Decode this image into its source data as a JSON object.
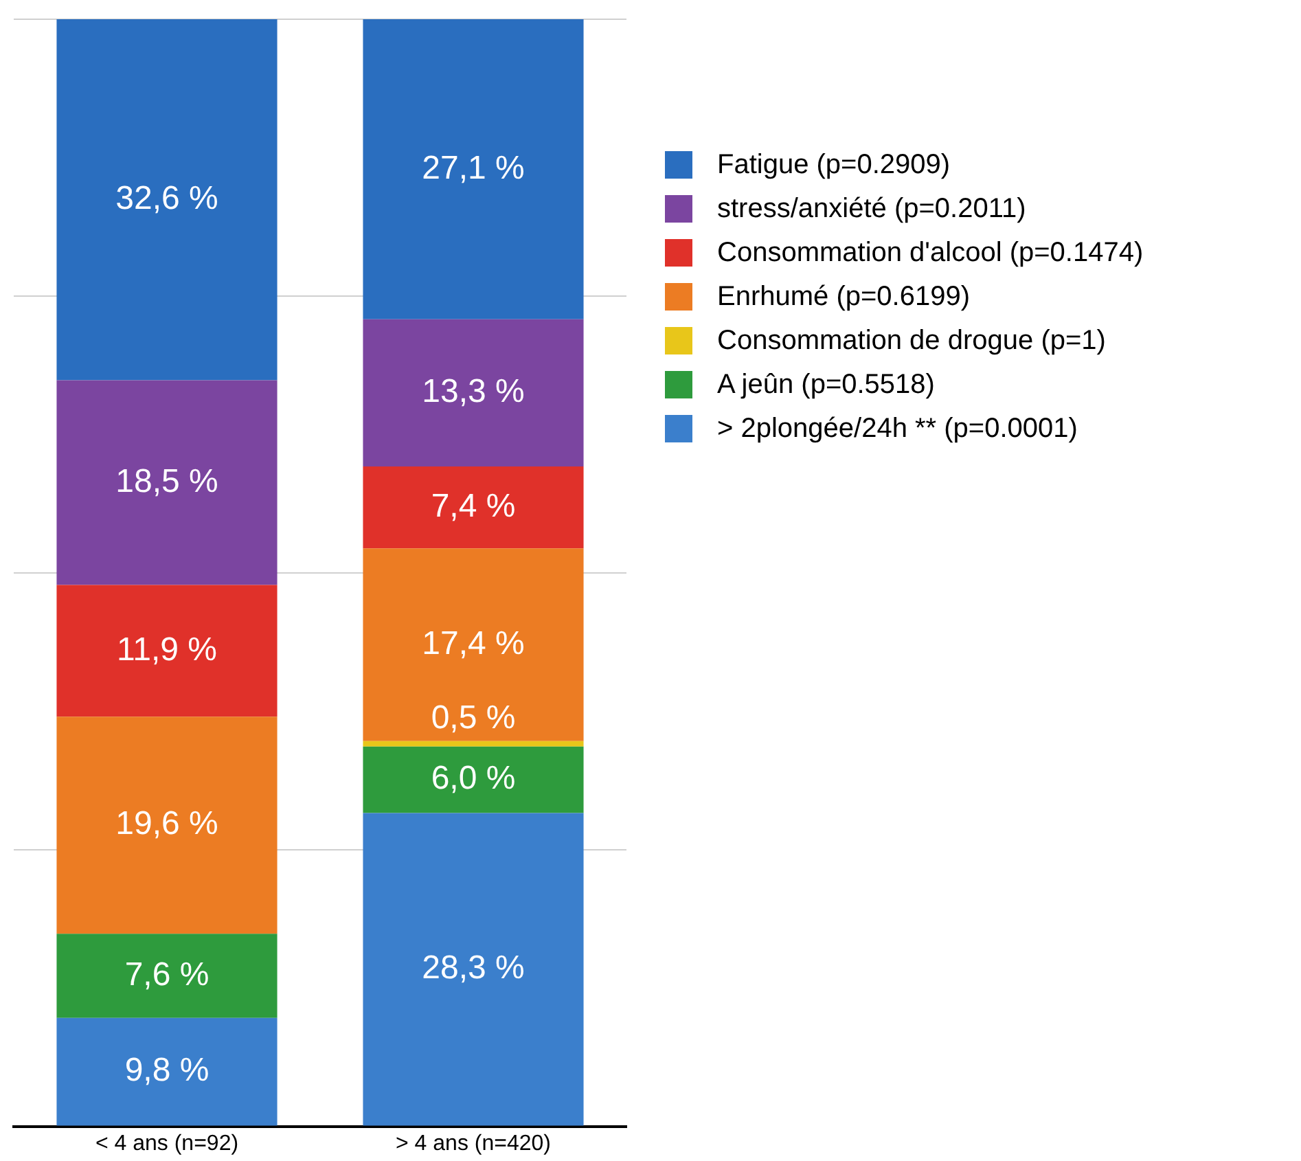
{
  "chart_data": {
    "type": "bar",
    "stacked": true,
    "categories": [
      "< 4 ans (n=92)",
      "> 4 ans (n=420)"
    ],
    "ylim": [
      0,
      100
    ],
    "yticks": [
      {
        "value": 0,
        "label": null
      },
      {
        "value": 25,
        "label": null
      },
      {
        "value": 50,
        "label": null
      },
      {
        "value": 75,
        "label": null
      },
      {
        "value": 100,
        "label": null
      }
    ],
    "tick_labels": "x",
    "grid": "y",
    "legend": "right",
    "series": [
      {
        "name": "> 2plongée/24h ** (p=0.0001)",
        "color": "#3b7fcc",
        "values": [
          9.8,
          28.3
        ],
        "value_labels": [
          "9,8 %",
          "28,3 %"
        ]
      },
      {
        "name": "A jeûn (p=0.5518)",
        "color": "#2e9b3d",
        "values": [
          7.6,
          6.0
        ],
        "value_labels": [
          "7,6 %",
          "6,0 %"
        ]
      },
      {
        "name": "Consommation de drogue (p=1)",
        "color": "#e8c61a",
        "values": [
          null,
          0.5
        ],
        "value_labels": [
          null,
          "0,5 %"
        ]
      },
      {
        "name": "Enrhumé (p=0.6199)",
        "color": "#ec7c23",
        "values": [
          19.6,
          17.4
        ],
        "value_labels": [
          "19,6 %",
          "17,4 %"
        ]
      },
      {
        "name": "Consommation d'alcool (p=0.1474)",
        "color": "#e0312a",
        "values": [
          11.9,
          7.4
        ],
        "value_labels": [
          "11,9 %",
          "7,4 %"
        ]
      },
      {
        "name": "stress/anxiété (p=0.2011)",
        "color": "#7b45a0",
        "values": [
          18.5,
          13.3
        ],
        "value_labels": [
          "18,5 %",
          "13,3 %"
        ]
      },
      {
        "name": "Fatigue (p=0.2909)",
        "color": "#2a6ebf",
        "values": [
          32.6,
          27.1
        ],
        "value_labels": [
          "32,6 %",
          "27,1 %"
        ]
      }
    ]
  }
}
